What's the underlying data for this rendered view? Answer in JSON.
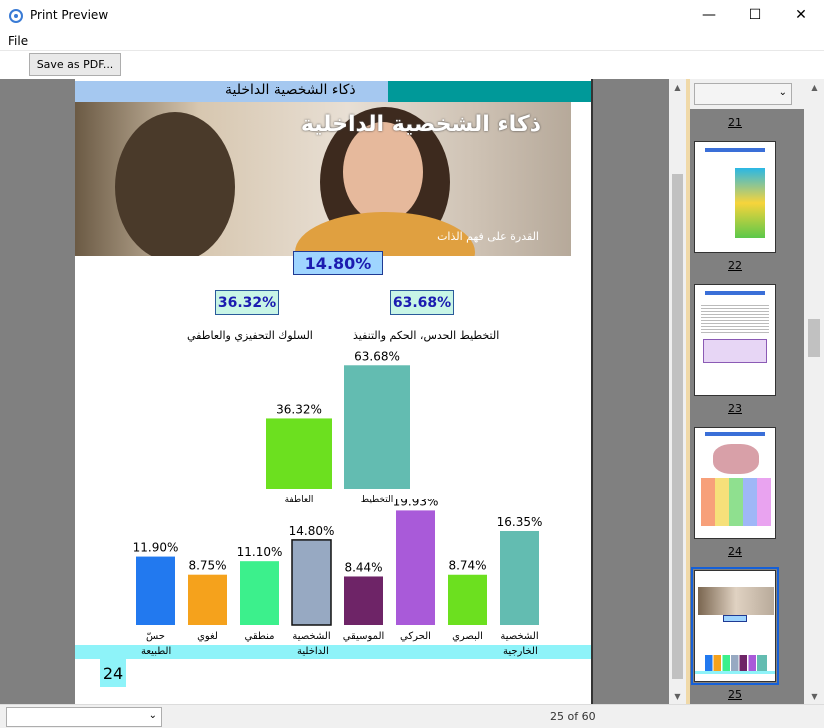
{
  "window": {
    "title": "Print Preview",
    "minimize_glyph": "—",
    "maximize_glyph": "☐",
    "close_glyph": "✕",
    "app_icon": "printer-preview-icon"
  },
  "menu": {
    "file": "File"
  },
  "toolbar": {
    "save_pdf": "Save as PDF..."
  },
  "page": {
    "header_title": "ذكاء الشخصية الداخلية",
    "photo_title": "ذكاء الشخصية الداخلية",
    "photo_subtitle": "القدرة على فهم الذات",
    "main_percent": "14.80%",
    "left_percent": "36.32%",
    "right_percent": "63.68%",
    "left_caption": "السلوك التحفيزي والعاطفي",
    "right_caption": "التخطيط الحدس، الحكم والتنفيذ",
    "group_left": "الطبيعة",
    "group_mid": "الداخلية",
    "group_right": "الخارجية",
    "page_number": "24"
  },
  "chart_data": [
    {
      "type": "bar",
      "categories": [
        "العاطفة",
        "التخطيط"
      ],
      "values": [
        36.32,
        63.68
      ],
      "value_labels": [
        "36.32%",
        "63.68%"
      ],
      "colors": [
        "#6ce01f",
        "#63bcb1"
      ],
      "ylim": [
        0,
        70
      ]
    },
    {
      "type": "bar",
      "categories": [
        "حسّ",
        "لغوي",
        "منطقي",
        "الشخصية",
        "الموسيقي",
        "الحركي",
        "البصري",
        "الشخصية"
      ],
      "values": [
        11.9,
        8.75,
        11.1,
        14.8,
        8.44,
        19.93,
        8.74,
        16.35
      ],
      "value_labels": [
        "11.90%",
        "8.75%",
        "11.10%",
        "14.80%",
        "8.44%",
        "19.93%",
        "8.74%",
        "16.35%"
      ],
      "colors": [
        "#2279ef",
        "#f5a21c",
        "#3cf08c",
        "#97a9c2",
        "#6e2467",
        "#a95ad9",
        "#6ce01f",
        "#63bcb1"
      ],
      "highlight_index": 3,
      "ylim": [
        0,
        20
      ]
    }
  ],
  "thumbnails": [
    {
      "label": "21",
      "selected": false
    },
    {
      "label": "22",
      "selected": false
    },
    {
      "label": "23",
      "selected": false
    },
    {
      "label": "24",
      "selected": false
    },
    {
      "label": "25",
      "selected": true
    }
  ],
  "status": {
    "page_count": "25 of 60"
  }
}
